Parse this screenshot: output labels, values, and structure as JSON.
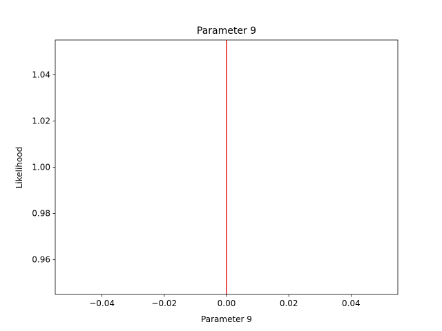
{
  "chart_data": {
    "type": "line",
    "title": "Parameter 9",
    "xlabel": "Parameter 9",
    "ylabel": "Likelihood",
    "xlim": [
      -0.055,
      0.055
    ],
    "ylim": [
      0.945,
      1.055
    ],
    "xticks": [
      -0.04,
      -0.02,
      0.0,
      0.02,
      0.04
    ],
    "xtick_labels": [
      "−0.04",
      "−0.02",
      "0.00",
      "0.02",
      "0.04"
    ],
    "yticks": [
      0.96,
      0.98,
      1.0,
      1.02,
      1.04
    ],
    "ytick_labels": [
      "0.96",
      "0.98",
      "1.00",
      "1.02",
      "1.04"
    ],
    "grid": false,
    "series": [
      {
        "type": "vline",
        "x": 0.0,
        "color": "#e41a1c"
      }
    ]
  }
}
